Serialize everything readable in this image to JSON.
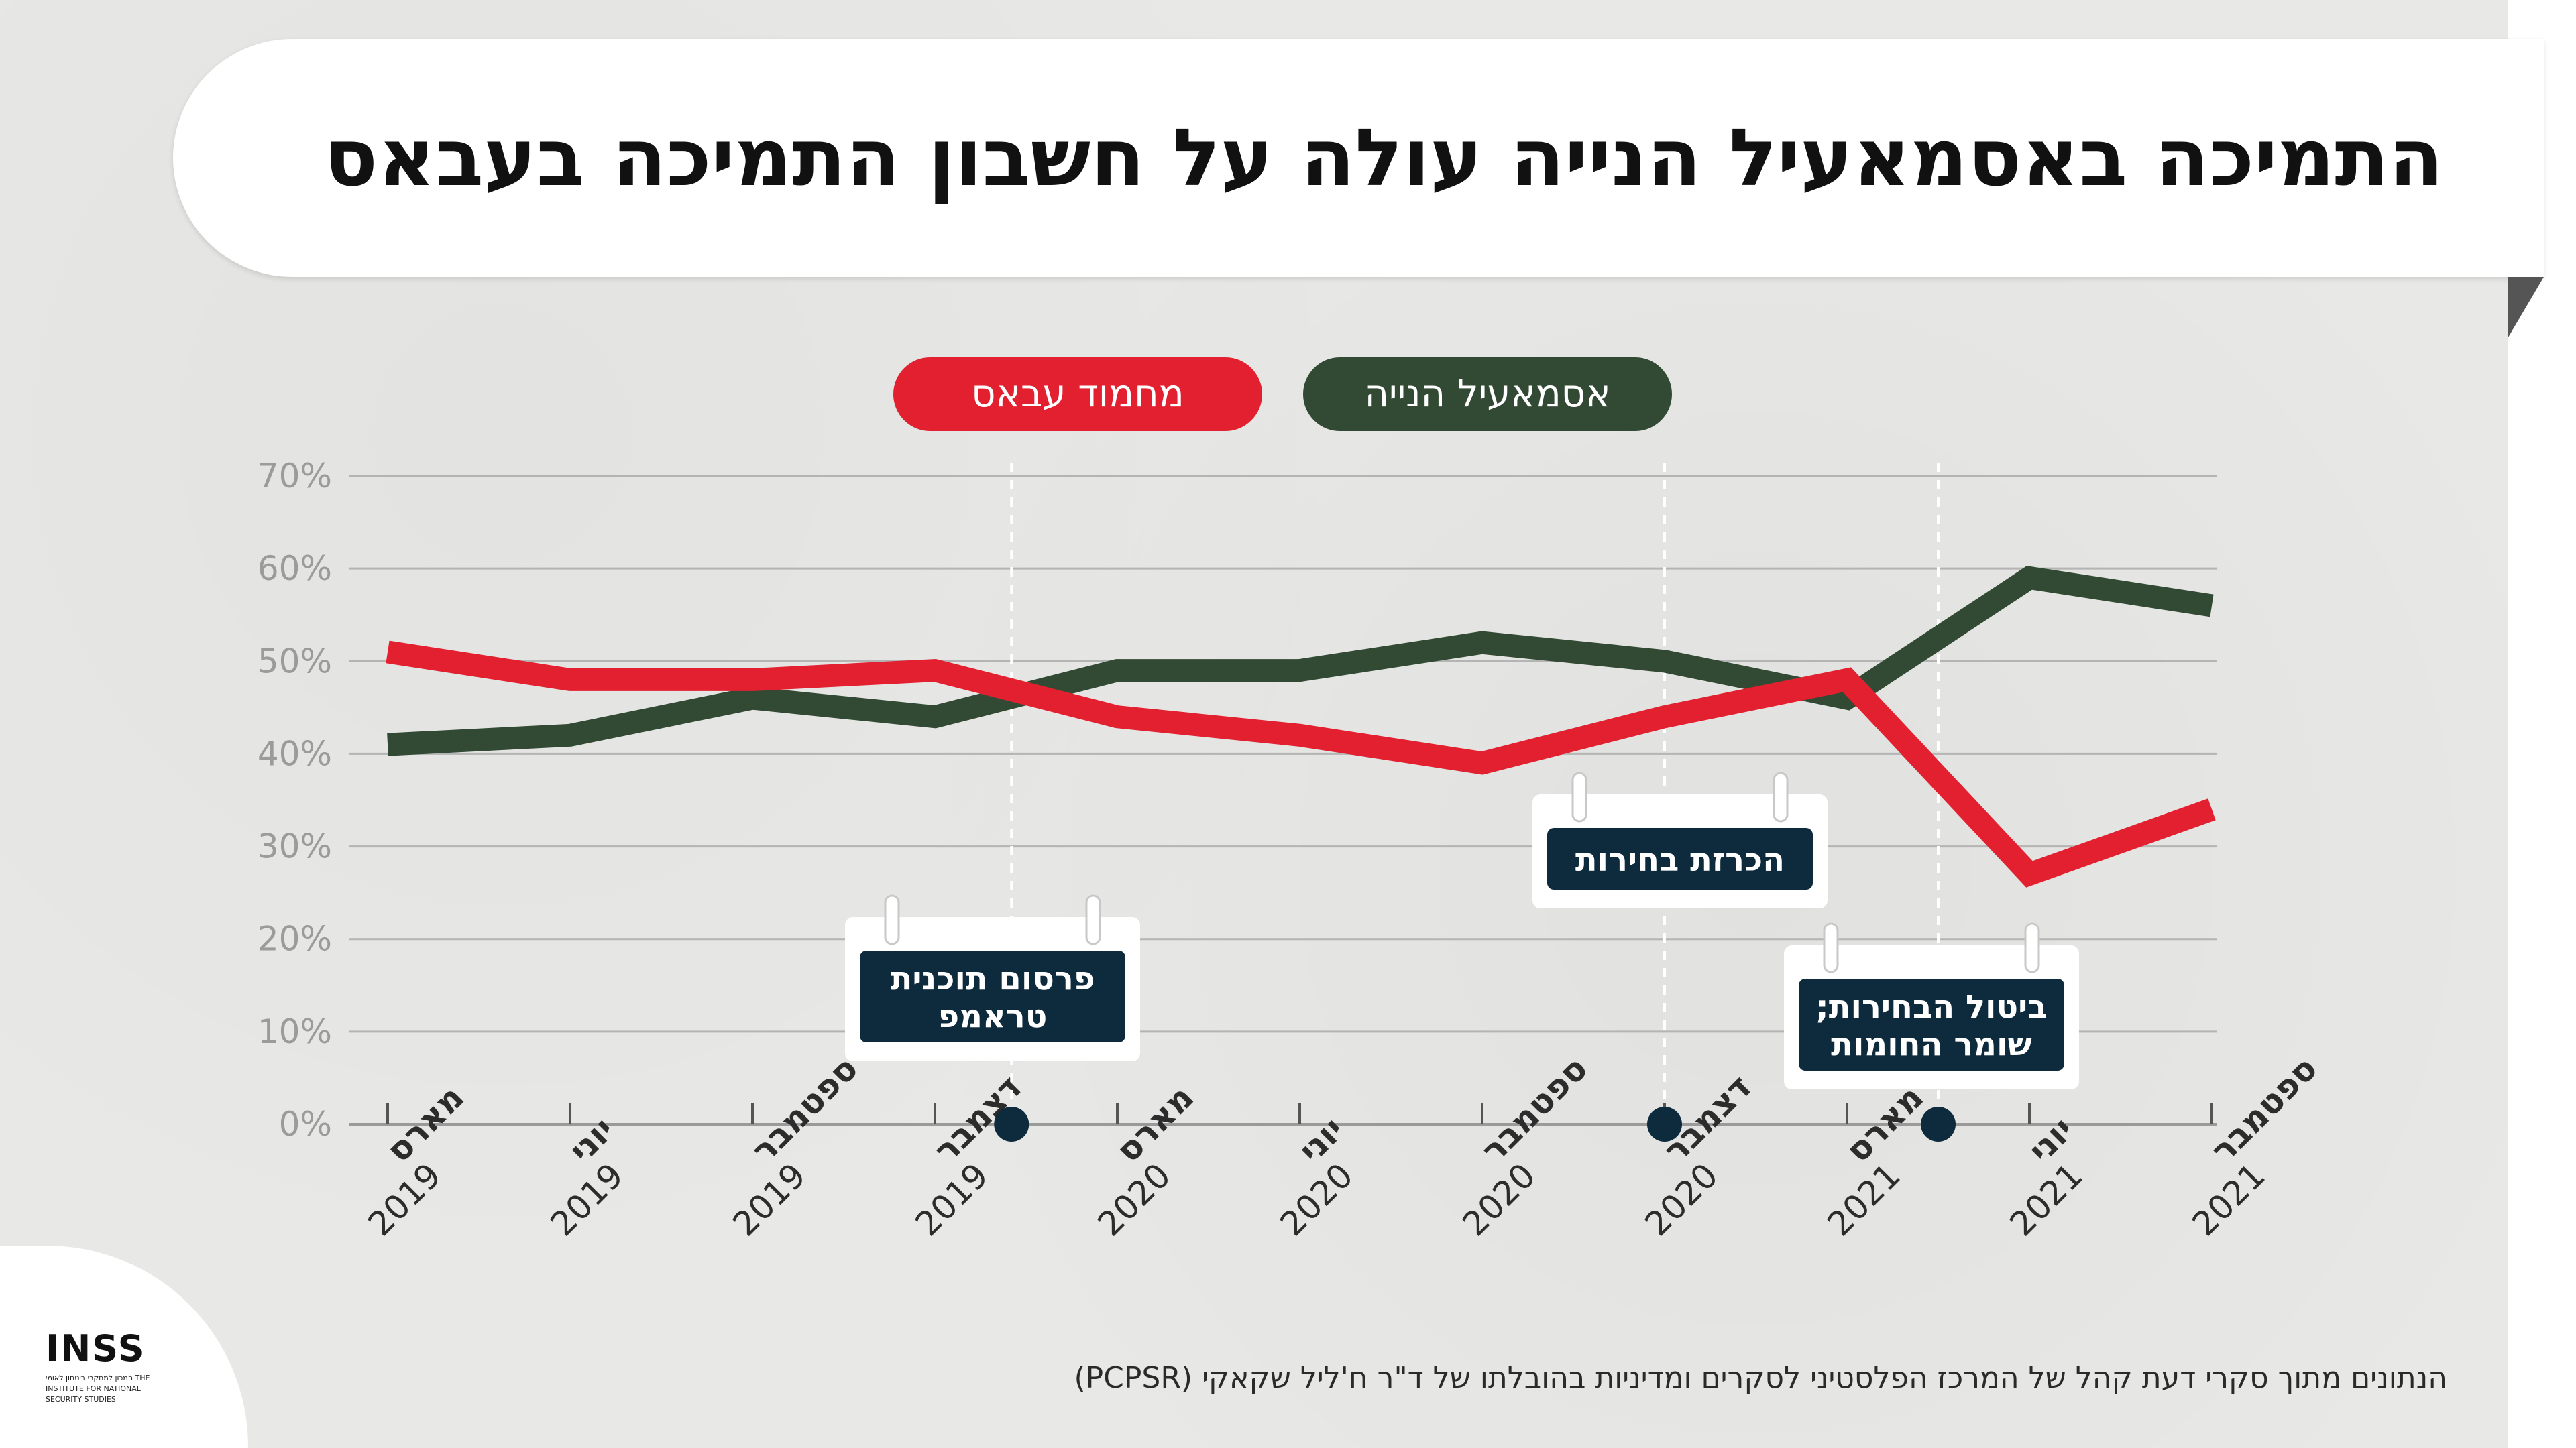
{
  "title": "התמיכה באסמאעיל הנייה עולה על חשבון התמיכה בעבאס",
  "footer": {
    "source": "הנתונים מתוך סקרי דעת קהל של המרכז הפלסטיני לסקרים ומדיניות בהובלתו של ד\"ר ח'ליל שקאקי (PCPSR)",
    "logo": "INSS",
    "logo_subtitle": "המכון למחקרי ביטחון לאומי THE INSTITUTE FOR NATIONAL SECURITY STUDIES"
  },
  "colors": {
    "haniyeh": "#324a33",
    "abbas": "#e3202f",
    "event_box": "#0e2a3d"
  },
  "chart_data": {
    "type": "line",
    "title": "התמיכה באסמאעיל הנייה עולה על חשבון התמיכה בעבאס",
    "xlabel": "",
    "ylabel": "",
    "ylim": [
      0,
      70
    ],
    "y_ticks": [
      "0%",
      "10%",
      "20%",
      "30%",
      "40%",
      "50%",
      "60%",
      "70%"
    ],
    "grid": true,
    "legend": "top-center",
    "categories": [
      {
        "month": "מארס",
        "year": "2019"
      },
      {
        "month": "יוני",
        "year": "2019"
      },
      {
        "month": "ספטמבר",
        "year": "2019"
      },
      {
        "month": "דצמבר",
        "year": "2019"
      },
      {
        "month": "מארס",
        "year": "2020"
      },
      {
        "month": "יוני",
        "year": "2020"
      },
      {
        "month": "ספטמבר",
        "year": "2020"
      },
      {
        "month": "דצמבר",
        "year": "2020"
      },
      {
        "month": "מארס",
        "year": "2021"
      },
      {
        "month": "יוני",
        "year": "2021"
      },
      {
        "month": "ספטמבר",
        "year": "2021"
      }
    ],
    "series": [
      {
        "name": "אסמאעיל הנייה",
        "color": "#324a33",
        "values": [
          41,
          42,
          46,
          44,
          49,
          49,
          52,
          50,
          46,
          59,
          56
        ]
      },
      {
        "name": "מחמוד עבאס",
        "color": "#e3202f",
        "values": [
          51,
          48,
          48,
          49,
          44,
          42,
          39,
          44,
          48,
          27,
          34
        ]
      }
    ],
    "annotations": [
      {
        "label": "פרסום תוכנית טראמפ",
        "lines": [
          "פרסום תוכנית",
          "טראמפ"
        ],
        "x_index": 3.42
      },
      {
        "label": "הכרזת בחירות",
        "lines": [
          "הכרזת בחירות"
        ],
        "x_index": 7.0
      },
      {
        "label": "ביטול הבחירות; שומר החומות",
        "lines": [
          "ביטול הבחירות;",
          "שומר החומות"
        ],
        "x_index": 8.5
      }
    ]
  }
}
